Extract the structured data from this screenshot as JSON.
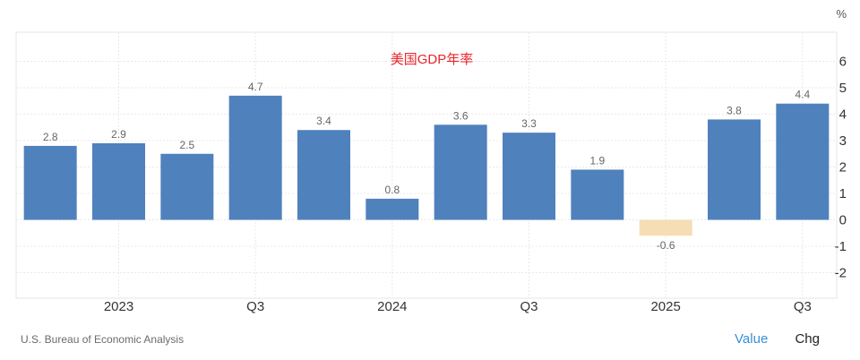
{
  "chart_data": {
    "type": "bar",
    "title": "美国GDP年率",
    "unit": "%",
    "categories": [
      "2022Q4",
      "2023Q1",
      "2023Q2",
      "2023Q3",
      "2023Q4",
      "2024Q1",
      "2024Q2",
      "2024Q3",
      "2024Q4",
      "2025Q1",
      "2025Q2",
      "2025Q3"
    ],
    "values": [
      2.8,
      2.9,
      2.5,
      4.7,
      3.4,
      0.8,
      3.6,
      3.3,
      1.9,
      -0.6,
      3.8,
      4.4
    ],
    "value_labels": [
      "2.8",
      "2.9",
      "2.5",
      "4.7",
      "3.4",
      "0.8",
      "3.6",
      "3.3",
      "1.9",
      "-0.6",
      "3.8",
      "4.4"
    ],
    "x_tick_labels": [
      {
        "index": 1.5,
        "label": "2023"
      },
      {
        "index": 3.5,
        "label": "Q3"
      },
      {
        "index": 5.5,
        "label": "2024"
      },
      {
        "index": 7.5,
        "label": "Q3"
      },
      {
        "index": 9.5,
        "label": "2025"
      },
      {
        "index": 11.5,
        "label": "Q3"
      }
    ],
    "y_ticks": [
      6,
      5,
      4,
      3,
      2,
      1,
      0,
      -1,
      -2
    ],
    "ylim": [
      -3,
      7
    ],
    "grid": true,
    "colors": {
      "positive": "#4f81bd",
      "negative": "#f5deb3",
      "title": "#e8242b",
      "label": "#666666",
      "axis_text": "#333333",
      "grid": "#e8e8e8"
    }
  },
  "footer": {
    "source": "U.S. Bureau of Economic Analysis",
    "value_button": "Value",
    "chg_button": "Chg"
  }
}
